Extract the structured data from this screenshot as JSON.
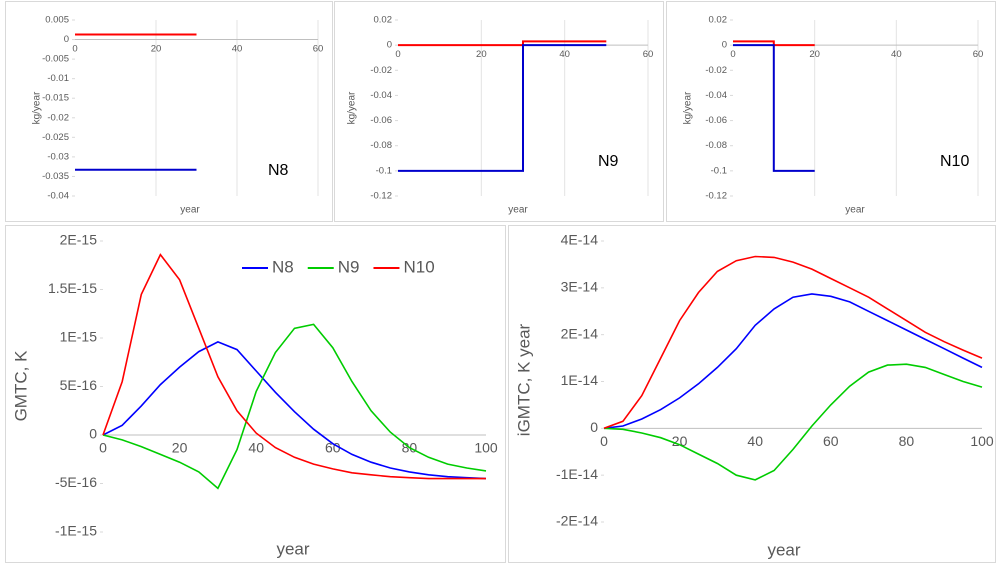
{
  "chart_data": [
    {
      "type": "line",
      "ylabel": "kg/year",
      "xlabel": "year",
      "annotation": "N8",
      "x": [
        0,
        30
      ],
      "series": [
        {
          "color": "#ff0000",
          "values": [
            0.0013,
            0.0013
          ]
        },
        {
          "color": "#0000cc",
          "values": [
            -0.0333,
            -0.0333
          ]
        }
      ],
      "xlim": [
        0,
        60
      ],
      "xticks": [
        0,
        20,
        40,
        60
      ],
      "ylim": [
        -0.04,
        0.005
      ],
      "yticks": [
        0.005,
        0,
        -0.005,
        -0.01,
        -0.015,
        -0.02,
        -0.025,
        -0.03,
        -0.035,
        -0.04
      ],
      "grid": true
    },
    {
      "type": "line",
      "ylabel": "kg/year",
      "xlabel": "year",
      "annotation": "N9",
      "x": [
        0,
        30,
        30,
        50
      ],
      "series": [
        {
          "color": "#ff0000",
          "values": [
            0,
            0,
            0.003,
            0.003
          ]
        },
        {
          "color": "#0000cc",
          "values": [
            -0.1,
            -0.1,
            0,
            0
          ]
        }
      ],
      "xlim": [
        0,
        60
      ],
      "xticks": [
        0,
        20,
        40,
        60
      ],
      "ylim": [
        -0.12,
        0.02
      ],
      "yticks": [
        0.02,
        0,
        -0.02,
        -0.04,
        -0.06,
        -0.08,
        -0.1,
        -0.12
      ],
      "grid": true
    },
    {
      "type": "line",
      "ylabel": "kg/year",
      "xlabel": "year",
      "annotation": "N10",
      "x": [
        0,
        10,
        10,
        20
      ],
      "series": [
        {
          "color": "#ff0000",
          "values": [
            0.003,
            0.003,
            0,
            0
          ]
        },
        {
          "color": "#0000cc",
          "values": [
            0,
            0,
            -0.1,
            -0.1
          ]
        }
      ],
      "xlim": [
        0,
        60
      ],
      "xticks": [
        0,
        20,
        40,
        60
      ],
      "ylim": [
        -0.12,
        0.02
      ],
      "yticks": [
        0.02,
        0,
        -0.02,
        -0.04,
        -0.06,
        -0.08,
        -0.1,
        -0.12
      ],
      "grid": true
    },
    {
      "type": "line",
      "ylabel": "GMTC, K",
      "xlabel": "year",
      "legend": "top",
      "x": [
        0,
        5,
        10,
        15,
        20,
        25,
        30,
        35,
        40,
        45,
        50,
        55,
        60,
        65,
        70,
        75,
        80,
        85,
        90,
        95,
        100
      ],
      "series": [
        {
          "name": "N8",
          "color": "#0000ff",
          "values": [
            0,
            1e-16,
            3e-16,
            5.2e-16,
            7e-16,
            8.6e-16,
            9.6e-16,
            8.8e-16,
            6.6e-16,
            4.4e-16,
            2.4e-16,
            6e-17,
            -9e-17,
            -2e-16,
            -2.8e-16,
            -3.4e-16,
            -3.8e-16,
            -4.1e-16,
            -4.3e-16,
            -4.4e-16,
            -4.5e-16
          ]
        },
        {
          "name": "N9",
          "color": "#00cc00",
          "values": [
            0,
            -5e-17,
            -1.2e-16,
            -2e-16,
            -2.8e-16,
            -3.8e-16,
            -5.5e-16,
            -1.5e-16,
            4.5e-16,
            8.5e-16,
            1.1e-15,
            1.14e-15,
            9e-16,
            5.5e-16,
            2.5e-16,
            3e-17,
            -1.3e-16,
            -2.3e-16,
            -3e-16,
            -3.4e-16,
            -3.7e-16
          ]
        },
        {
          "name": "N10",
          "color": "#ff0000",
          "values": [
            0,
            5.5e-16,
            1.45e-15,
            1.86e-15,
            1.6e-15,
            1.1e-15,
            6e-16,
            2.5e-16,
            2e-17,
            -1.3e-16,
            -2.3e-16,
            -3e-16,
            -3.5e-16,
            -3.9e-16,
            -4.1e-16,
            -4.3e-16,
            -4.4e-16,
            -4.5e-16,
            -4.5e-16,
            -4.5e-16,
            -4.5e-16
          ]
        }
      ],
      "xlim": [
        0,
        100
      ],
      "xticks": [
        0,
        20,
        40,
        60,
        80,
        100
      ],
      "ylim": [
        -1e-15,
        2e-15
      ],
      "yticks": [
        {
          "value": 2e-15,
          "label": "2E-15"
        },
        {
          "value": 1.5e-15,
          "label": "1.5E-15"
        },
        {
          "value": 1e-15,
          "label": "1E-15"
        },
        {
          "value": 5e-16,
          "label": "5E-16"
        },
        0,
        {
          "value": -5e-16,
          "label": "-5E-16"
        },
        {
          "value": -1e-15,
          "label": "-1E-15"
        }
      ]
    },
    {
      "type": "line",
      "ylabel": "iGMTC, K year",
      "xlabel": "year",
      "x": [
        0,
        5,
        10,
        15,
        20,
        25,
        30,
        35,
        40,
        45,
        50,
        55,
        60,
        65,
        70,
        75,
        80,
        85,
        90,
        95,
        100
      ],
      "series": [
        {
          "color": "#0000ff",
          "values": [
            0,
            5e-16,
            2e-15,
            4e-15,
            6.5e-15,
            9.5e-15,
            1.3e-14,
            1.7e-14,
            2.2e-14,
            2.55e-14,
            2.8e-14,
            2.87e-14,
            2.82e-14,
            2.7e-14,
            2.5e-14,
            2.3e-14,
            2.1e-14,
            1.9e-14,
            1.7e-14,
            1.5e-14,
            1.3e-14
          ]
        },
        {
          "color": "#00cc00",
          "values": [
            0,
            -2e-16,
            -1e-15,
            -2e-15,
            -3.5e-15,
            -5.5e-15,
            -7.5e-15,
            -1e-14,
            -1.1e-14,
            -9e-15,
            -4.5e-15,
            5e-16,
            5e-15,
            9e-15,
            1.2e-14,
            1.35e-14,
            1.37e-14,
            1.3e-14,
            1.15e-14,
            1e-14,
            8.8e-15
          ]
        },
        {
          "color": "#ff0000",
          "values": [
            0,
            1.5e-15,
            7e-15,
            1.5e-14,
            2.3e-14,
            2.9e-14,
            3.35e-14,
            3.58e-14,
            3.67e-14,
            3.65e-14,
            3.55e-14,
            3.4e-14,
            3.2e-14,
            3e-14,
            2.8e-14,
            2.55e-14,
            2.3e-14,
            2.05e-14,
            1.85e-14,
            1.67e-14,
            1.5e-14
          ]
        }
      ],
      "xlim": [
        0,
        100
      ],
      "xticks": [
        0,
        20,
        40,
        60,
        80,
        100
      ],
      "ylim": [
        -2e-14,
        4e-14
      ],
      "yticks": [
        {
          "value": 4e-14,
          "label": "4E-14"
        },
        {
          "value": 3e-14,
          "label": "3E-14"
        },
        {
          "value": 2e-14,
          "label": "2E-14"
        },
        {
          "value": 1e-14,
          "label": "1E-14"
        },
        0,
        {
          "value": -1e-14,
          "label": "-1E-14"
        },
        {
          "value": -2e-14,
          "label": "-2E-14"
        }
      ]
    }
  ]
}
